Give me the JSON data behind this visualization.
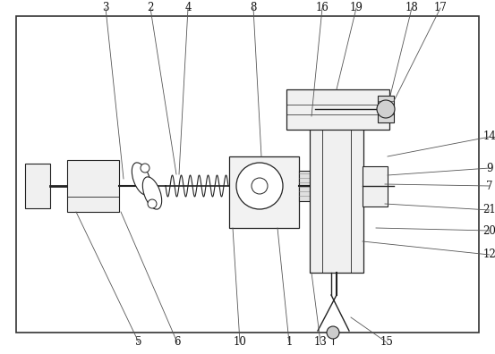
{
  "bg_color": "#ffffff",
  "dc": "#222222",
  "lc": "#666666",
  "fig_width": 5.53,
  "fig_height": 3.96,
  "dpi": 100,
  "border_lw": 1.0,
  "component_lw": 0.8
}
